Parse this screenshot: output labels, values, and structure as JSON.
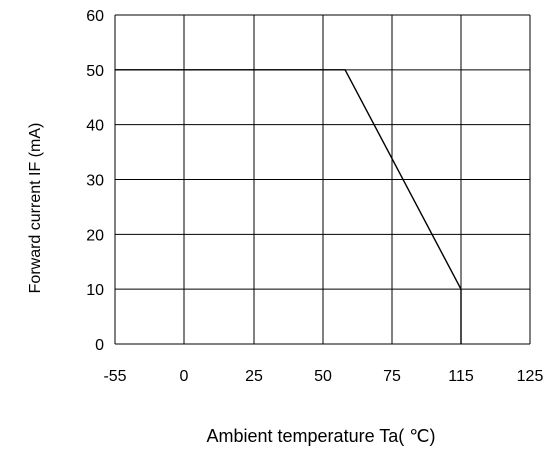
{
  "chart_data": {
    "type": "line",
    "title": "",
    "xlabel": "Ambient temperature Ta( ℃)",
    "ylabel": "Forward current IF (mA)",
    "x_tick_labels": [
      "-55",
      "0",
      "25",
      "50",
      "75",
      "115",
      "125"
    ],
    "y_tick_labels": [
      "0",
      "10",
      "20",
      "30",
      "40",
      "50",
      "60"
    ],
    "ylim": [
      0,
      60
    ],
    "grid": true,
    "series": [
      {
        "points": [
          {
            "x": -55,
            "y": 50
          },
          {
            "x": 58,
            "y": 50
          },
          {
            "x": 115,
            "y": 10
          },
          {
            "x": 115,
            "y": 0
          }
        ]
      }
    ]
  }
}
